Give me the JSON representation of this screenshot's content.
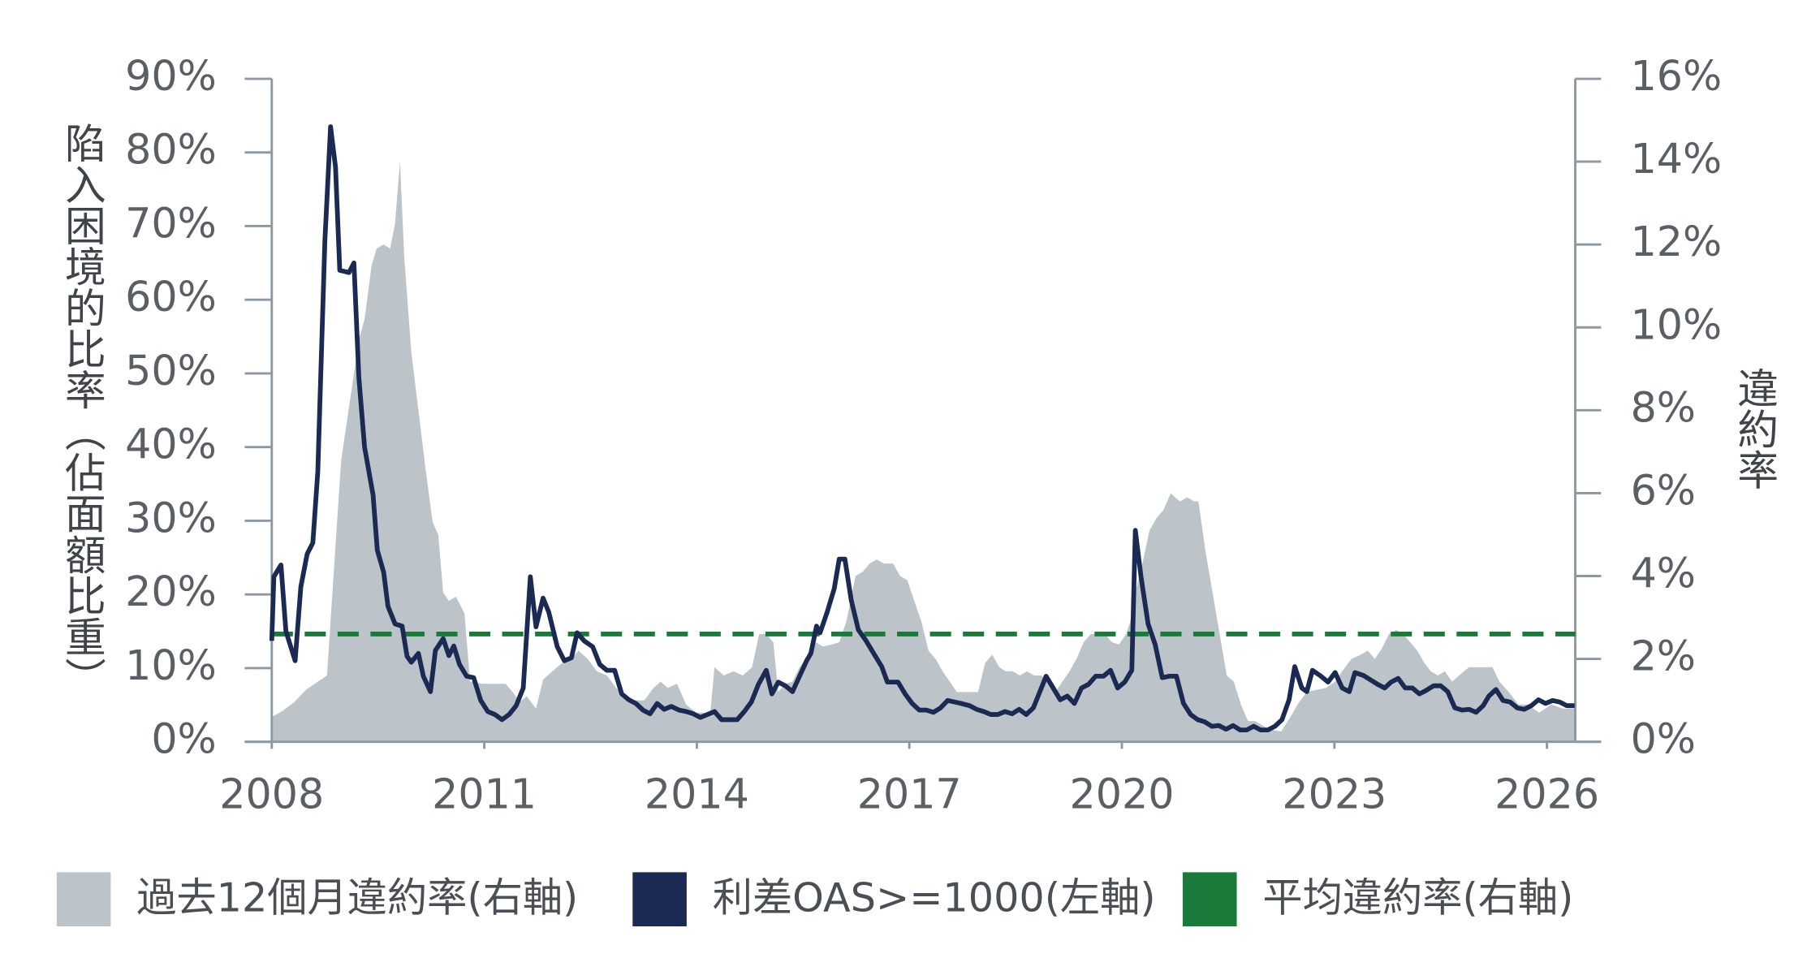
{
  "chart_data": {
    "type": "line",
    "y_label": "陷入困境的比率（佔面額比重）",
    "y2_label": "違約率",
    "xlim": [
      2008,
      2026.4
    ],
    "xticks": [
      2008,
      2011,
      2014,
      2017,
      2020,
      2023,
      2026
    ],
    "ylim": [
      0,
      90
    ],
    "yticks": [
      {
        "value": 0,
        "label": "0%"
      },
      {
        "value": 10,
        "label": "10%"
      },
      {
        "value": 20,
        "label": "20%"
      },
      {
        "value": 30,
        "label": "30%"
      },
      {
        "value": 40,
        "label": "40%"
      },
      {
        "value": 50,
        "label": "50%"
      },
      {
        "value": 60,
        "label": "60%"
      },
      {
        "value": 70,
        "label": "70%"
      },
      {
        "value": 80,
        "label": "80%"
      },
      {
        "value": 90,
        "label": "90%"
      }
    ],
    "y2lim": [
      0,
      16
    ],
    "y2ticks": [
      {
        "value": 0,
        "label": "0%"
      },
      {
        "value": 2,
        "label": "2%"
      },
      {
        "value": 4,
        "label": "4%"
      },
      {
        "value": 6,
        "label": "6%"
      },
      {
        "value": 8,
        "label": "8%"
      },
      {
        "value": 10,
        "label": "10%"
      },
      {
        "value": 12,
        "label": "12%"
      },
      {
        "value": 14,
        "label": "14%"
      },
      {
        "value": 16,
        "label": "16%"
      }
    ],
    "series": [
      {
        "name": "過去12個月違約率(右軸)",
        "color": "#bcc3c9",
        "style": "area",
        "axis": "y2",
        "x": [
          2008.0,
          2008.15,
          2008.32,
          2008.48,
          2008.65,
          2008.78,
          2008.86,
          2008.98,
          2009.11,
          2009.23,
          2009.31,
          2009.41,
          2009.48,
          2009.58,
          2009.67,
          2009.74,
          2009.81,
          2009.87,
          2009.97,
          2010.07,
          2010.17,
          2010.27,
          2010.35,
          2010.42,
          2010.5,
          2010.6,
          2010.72,
          2010.8,
          2010.97,
          2011.3,
          2011.4,
          2011.5,
          2011.6,
          2011.73,
          2011.83,
          2011.96,
          2012.1,
          2012.23,
          2012.33,
          2012.46,
          2012.59,
          2012.73,
          2012.86,
          2012.99,
          2013.12,
          2013.26,
          2013.39,
          2013.49,
          2013.59,
          2013.72,
          2013.85,
          2013.99,
          2014.12,
          2014.19,
          2014.25,
          2014.38,
          2014.52,
          2014.65,
          2014.78,
          2014.88,
          2014.98,
          2015.08,
          2015.15,
          2015.25,
          2015.35,
          2015.45,
          2015.58,
          2015.68,
          2015.78,
          2015.91,
          2016.01,
          2016.11,
          2016.24,
          2016.34,
          2016.44,
          2016.54,
          2016.64,
          2016.77,
          2016.87,
          2016.97,
          2017.07,
          2017.17,
          2017.27,
          2017.37,
          2017.47,
          2017.57,
          2017.67,
          2017.77,
          2017.87,
          2017.97,
          2018.07,
          2018.17,
          2018.27,
          2018.36,
          2018.46,
          2018.56,
          2018.66,
          2018.76,
          2018.86,
          2018.96,
          2019.06,
          2019.16,
          2019.26,
          2019.36,
          2019.46,
          2019.56,
          2019.66,
          2019.76,
          2019.86,
          2019.96,
          2020.06,
          2020.12,
          2020.19,
          2020.29,
          2020.39,
          2020.49,
          2020.59,
          2020.69,
          2020.75,
          2020.82,
          2020.92,
          2021.02,
          2021.08,
          2021.18,
          2021.28,
          2021.38,
          2021.48,
          2021.58,
          2021.68,
          2021.78,
          2021.88,
          2021.98,
          2022.08,
          2022.25,
          2022.38,
          2022.48,
          2022.61,
          2022.74,
          2022.88,
          2023.01,
          2023.11,
          2023.24,
          2023.37,
          2023.47,
          2023.57,
          2023.67,
          2023.77,
          2023.87,
          2023.97,
          2024.07,
          2024.17,
          2024.27,
          2024.36,
          2024.46,
          2024.56,
          2024.66,
          2024.76,
          2024.9,
          2025.06,
          2025.23,
          2025.33,
          2025.46,
          2025.6,
          2025.73,
          2025.89,
          2026.06,
          2026.23,
          2026.39
        ],
        "values": [
          0.6,
          0.74,
          0.96,
          1.25,
          1.45,
          1.6,
          3.7,
          6.8,
          8.3,
          9.7,
          10.2,
          11.5,
          11.9,
          12.0,
          11.9,
          12.5,
          14.0,
          11.7,
          9.4,
          8.0,
          6.6,
          5.3,
          5.0,
          3.6,
          3.4,
          3.5,
          3.1,
          1.45,
          1.4,
          1.4,
          1.2,
          0.96,
          1.1,
          0.8,
          1.5,
          1.7,
          1.9,
          2.0,
          2.2,
          2.0,
          1.7,
          1.6,
          1.3,
          1.1,
          1.0,
          1.0,
          1.3,
          1.45,
          1.3,
          1.4,
          0.9,
          0.7,
          0.7,
          0.7,
          1.8,
          1.6,
          1.7,
          1.6,
          1.8,
          2.6,
          2.6,
          2.4,
          1.2,
          1.4,
          1.45,
          1.8,
          2.1,
          2.4,
          2.3,
          2.35,
          2.4,
          2.9,
          4.0,
          4.1,
          4.3,
          4.4,
          4.3,
          4.3,
          4.0,
          3.9,
          3.4,
          2.9,
          2.2,
          2.0,
          1.7,
          1.45,
          1.2,
          1.2,
          1.2,
          1.2,
          1.9,
          2.1,
          1.8,
          1.7,
          1.7,
          1.6,
          1.7,
          1.6,
          1.6,
          1.45,
          1.2,
          1.45,
          1.7,
          2.0,
          2.4,
          2.6,
          2.6,
          2.6,
          2.4,
          2.35,
          2.6,
          2.9,
          3.6,
          4.3,
          5.1,
          5.4,
          5.6,
          6.0,
          5.9,
          5.8,
          5.9,
          5.8,
          5.8,
          4.6,
          3.6,
          2.6,
          1.6,
          1.45,
          0.9,
          0.5,
          0.5,
          0.4,
          0.3,
          0.25,
          0.6,
          0.9,
          1.2,
          1.25,
          1.3,
          1.45,
          1.7,
          2.0,
          2.1,
          2.2,
          2.0,
          2.25,
          2.6,
          2.7,
          2.6,
          2.4,
          2.2,
          1.9,
          1.7,
          1.6,
          1.7,
          1.45,
          1.6,
          1.8,
          1.8,
          1.8,
          1.45,
          1.2,
          0.9,
          0.9,
          0.7,
          0.9,
          0.8,
          0.8
        ]
      },
      {
        "name": "利差OAS>=1000(左軸)",
        "color": "#1b2a52",
        "style": "line",
        "x": [
          2008.0,
          2008.03,
          2008.13,
          2008.2,
          2008.33,
          2008.41,
          2008.5,
          2008.58,
          2008.65,
          2008.75,
          2008.83,
          2008.9,
          2008.96,
          2009.09,
          2009.16,
          2009.23,
          2009.31,
          2009.43,
          2009.49,
          2009.58,
          2009.64,
          2009.74,
          2009.84,
          2009.91,
          2009.97,
          2010.07,
          2010.14,
          2010.24,
          2010.31,
          2010.42,
          2010.5,
          2010.57,
          2010.65,
          2010.75,
          2010.85,
          2010.95,
          2011.05,
          2011.15,
          2011.25,
          2011.35,
          2011.45,
          2011.55,
          2011.65,
          2011.73,
          2011.83,
          2011.91,
          2012.03,
          2012.13,
          2012.23,
          2012.31,
          2012.41,
          2012.53,
          2012.63,
          2012.73,
          2012.84,
          2012.94,
          2013.04,
          2013.14,
          2013.24,
          2013.34,
          2013.44,
          2013.54,
          2013.64,
          2013.75,
          2013.85,
          2013.95,
          2014.05,
          2014.15,
          2014.25,
          2014.35,
          2014.47,
          2014.57,
          2014.67,
          2014.77,
          2014.87,
          2014.98,
          2015.06,
          2015.15,
          2015.25,
          2015.35,
          2015.45,
          2015.55,
          2015.61,
          2015.69,
          2015.74,
          2015.84,
          2015.94,
          2016.01,
          2016.09,
          2016.18,
          2016.28,
          2016.39,
          2016.49,
          2016.61,
          2016.69,
          2016.84,
          2016.94,
          2017.04,
          2017.14,
          2017.24,
          2017.34,
          2017.44,
          2017.54,
          2017.64,
          2017.73,
          2017.85,
          2017.95,
          2018.05,
          2018.15,
          2018.25,
          2018.35,
          2018.45,
          2018.55,
          2018.65,
          2018.75,
          2018.83,
          2018.93,
          2019.03,
          2019.13,
          2019.23,
          2019.33,
          2019.43,
          2019.53,
          2019.63,
          2019.74,
          2019.84,
          2019.94,
          2020.04,
          2020.14,
          2020.19,
          2020.27,
          2020.37,
          2020.47,
          2020.57,
          2020.67,
          2020.77,
          2020.87,
          2020.97,
          2021.07,
          2021.17,
          2021.27,
          2021.37,
          2021.47,
          2021.57,
          2021.67,
          2021.76,
          2021.86,
          2021.96,
          2022.06,
          2022.16,
          2022.26,
          2022.36,
          2022.44,
          2022.54,
          2022.61,
          2022.69,
          2022.81,
          2022.91,
          2023.01,
          2023.11,
          2023.21,
          2023.29,
          2023.41,
          2023.51,
          2023.61,
          2023.71,
          2023.8,
          2023.9,
          2024.0,
          2024.1,
          2024.2,
          2024.3,
          2024.4,
          2024.5,
          2024.6,
          2024.7,
          2024.8,
          2024.9,
          2025.0,
          2025.1,
          2025.18,
          2025.28,
          2025.38,
          2025.48,
          2025.58,
          2025.68,
          2025.78,
          2025.88,
          2025.98,
          2026.08,
          2026.18,
          2026.28,
          2026.39
        ],
        "values": [
          13.7,
          22.4,
          24.0,
          15.0,
          11.0,
          21.0,
          25.5,
          27.0,
          36.7,
          68.0,
          83.5,
          78.0,
          64.0,
          63.7,
          65.0,
          49.4,
          40.0,
          33.5,
          26.0,
          23.0,
          18.4,
          16.0,
          15.7,
          11.6,
          10.8,
          12.0,
          8.9,
          6.8,
          12.4,
          14.0,
          11.7,
          13.0,
          10.5,
          8.9,
          8.7,
          5.6,
          4.1,
          3.7,
          3.0,
          3.7,
          4.9,
          7.3,
          22.4,
          15.6,
          19.5,
          17.6,
          12.9,
          11.0,
          11.4,
          14.8,
          13.7,
          12.9,
          10.5,
          9.7,
          9.7,
          6.5,
          5.7,
          5.2,
          4.3,
          3.8,
          5.2,
          4.4,
          4.8,
          4.3,
          4.1,
          3.8,
          3.3,
          3.7,
          4.1,
          3.0,
          3.0,
          3.0,
          4.1,
          5.4,
          7.8,
          9.7,
          6.5,
          8.1,
          7.6,
          6.8,
          8.9,
          11.0,
          12.0,
          15.7,
          14.8,
          17.6,
          20.8,
          24.8,
          24.8,
          19.2,
          15.2,
          13.7,
          12.1,
          10.2,
          8.1,
          8.1,
          6.5,
          5.2,
          4.3,
          4.3,
          4.0,
          4.6,
          5.6,
          5.4,
          5.2,
          4.9,
          4.4,
          4.1,
          3.7,
          3.7,
          4.1,
          3.8,
          4.4,
          3.7,
          4.6,
          6.5,
          8.9,
          7.3,
          5.7,
          6.2,
          5.2,
          7.3,
          7.8,
          8.9,
          8.9,
          9.7,
          7.3,
          8.1,
          9.7,
          28.7,
          22.4,
          16.0,
          13.2,
          8.7,
          8.9,
          8.9,
          5.2,
          3.7,
          3.0,
          2.7,
          2.1,
          2.2,
          1.7,
          2.2,
          1.6,
          1.6,
          2.1,
          1.6,
          1.6,
          2.1,
          3.0,
          5.7,
          10.2,
          7.3,
          6.8,
          9.7,
          8.9,
          8.1,
          9.4,
          7.3,
          6.8,
          9.4,
          9.0,
          8.4,
          7.8,
          7.3,
          8.1,
          8.6,
          7.3,
          7.3,
          6.5,
          7.0,
          7.6,
          7.6,
          6.8,
          4.6,
          4.3,
          4.4,
          4.0,
          4.9,
          6.2,
          7.1,
          5.6,
          5.4,
          4.6,
          4.4,
          4.9,
          5.7,
          5.2,
          5.6,
          5.4,
          4.9,
          4.9
        ]
      },
      {
        "name": "平均違約率(右軸)",
        "color": "#1a7a3a",
        "style": "dashed",
        "axis": "y2",
        "x": [
          2008,
          2026.4
        ],
        "values": [
          2.6,
          2.6
        ]
      }
    ]
  }
}
